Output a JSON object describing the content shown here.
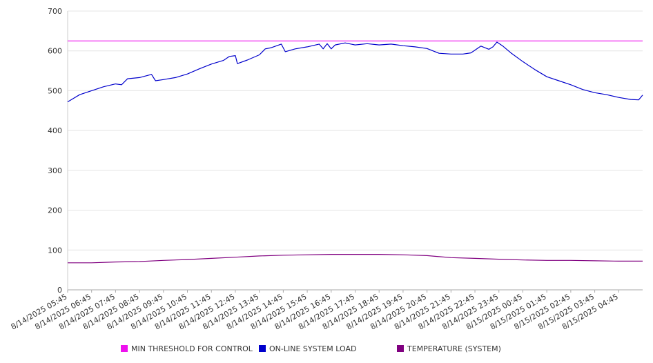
{
  "chart_data": {
    "type": "line",
    "y_ticks": [
      0,
      100,
      200,
      300,
      400,
      500,
      600,
      700
    ],
    "ylim": [
      0,
      700
    ],
    "x_tick_labels": [
      "8/14/2025 05:45",
      "8/14/2025 06:45",
      "8/14/2025 07:45",
      "8/14/2025 08:45",
      "8/14/2025 09:45",
      "8/14/2025 10:45",
      "8/14/2025 11:45",
      "8/14/2025 12:45",
      "8/14/2025 13:45",
      "8/14/2025 14:45",
      "8/14/2025 15:45",
      "8/14/2025 16:45",
      "8/14/2025 17:45",
      "8/14/2025 18:45",
      "8/14/2025 19:45",
      "8/14/2025 20:45",
      "8/14/2025 21:45",
      "8/14/2025 22:45",
      "8/14/2025 23:45",
      "8/15/2025 00:45",
      "8/15/2025 01:45",
      "8/15/2025 02:45",
      "8/15/2025 03:45",
      "8/15/2025 04:45"
    ],
    "x_range": [
      "8/14/2025 05:45",
      "8/15/2025 05:45"
    ],
    "grid": "horizontal",
    "legend_position": "bottom",
    "series": [
      {
        "name": "MIN THRESHOLD FOR CONTROL",
        "color": "#ee11ee",
        "points": [
          [
            "8/14/2025 05:45",
            625
          ],
          [
            "8/15/2025 05:45",
            625
          ]
        ]
      },
      {
        "name": "ON-LINE SYSTEM LOAD",
        "color": "#0000cc",
        "points": [
          [
            "8/14/2025 05:45",
            472
          ],
          [
            "8/14/2025 06:15",
            490
          ],
          [
            "8/14/2025 06:45",
            500
          ],
          [
            "8/14/2025 07:15",
            510
          ],
          [
            "8/14/2025 07:45",
            517
          ],
          [
            "8/14/2025 08:00",
            515
          ],
          [
            "8/14/2025 08:15",
            530
          ],
          [
            "8/14/2025 08:45",
            533
          ],
          [
            "8/14/2025 09:15",
            541
          ],
          [
            "8/14/2025 09:25",
            525
          ],
          [
            "8/14/2025 09:45",
            528
          ],
          [
            "8/14/2025 10:15",
            533
          ],
          [
            "8/14/2025 10:45",
            542
          ],
          [
            "8/14/2025 11:15",
            555
          ],
          [
            "8/14/2025 11:45",
            567
          ],
          [
            "8/14/2025 12:15",
            576
          ],
          [
            "8/14/2025 12:30",
            586
          ],
          [
            "8/14/2025 12:45",
            588
          ],
          [
            "8/14/2025 12:50",
            568
          ],
          [
            "8/14/2025 13:15",
            577
          ],
          [
            "8/14/2025 13:45",
            590
          ],
          [
            "8/14/2025 14:00",
            605
          ],
          [
            "8/14/2025 14:15",
            608
          ],
          [
            "8/14/2025 14:40",
            617
          ],
          [
            "8/14/2025 14:50",
            598
          ],
          [
            "8/14/2025 15:15",
            605
          ],
          [
            "8/14/2025 15:45",
            610
          ],
          [
            "8/14/2025 16:15",
            617
          ],
          [
            "8/14/2025 16:25",
            605
          ],
          [
            "8/14/2025 16:35",
            618
          ],
          [
            "8/14/2025 16:45",
            605
          ],
          [
            "8/14/2025 16:55",
            615
          ],
          [
            "8/14/2025 17:20",
            620
          ],
          [
            "8/14/2025 17:45",
            615
          ],
          [
            "8/14/2025 18:15",
            618
          ],
          [
            "8/14/2025 18:45",
            615
          ],
          [
            "8/14/2025 19:15",
            617
          ],
          [
            "8/14/2025 19:45",
            613
          ],
          [
            "8/14/2025 20:15",
            610
          ],
          [
            "8/14/2025 20:45",
            606
          ],
          [
            "8/14/2025 21:15",
            594
          ],
          [
            "8/14/2025 21:45",
            592
          ],
          [
            "8/14/2025 22:15",
            592
          ],
          [
            "8/14/2025 22:35",
            595
          ],
          [
            "8/14/2025 23:00",
            612
          ],
          [
            "8/14/2025 23:20",
            604
          ],
          [
            "8/14/2025 23:30",
            610
          ],
          [
            "8/14/2025 23:40",
            622
          ],
          [
            "8/14/2025 23:55",
            612
          ],
          [
            "8/15/2025 00:15",
            595
          ],
          [
            "8/15/2025 00:45",
            573
          ],
          [
            "8/15/2025 01:15",
            553
          ],
          [
            "8/15/2025 01:45",
            535
          ],
          [
            "8/15/2025 02:15",
            525
          ],
          [
            "8/15/2025 02:45",
            515
          ],
          [
            "8/15/2025 03:15",
            503
          ],
          [
            "8/15/2025 03:45",
            495
          ],
          [
            "8/15/2025 04:15",
            490
          ],
          [
            "8/15/2025 04:45",
            483
          ],
          [
            "8/15/2025 05:15",
            478
          ],
          [
            "8/15/2025 05:35",
            477
          ],
          [
            "8/15/2025 05:45",
            489
          ]
        ]
      },
      {
        "name": "TEMPERATURE (SYSTEM)",
        "color": "#800080",
        "points": [
          [
            "8/14/2025 05:45",
            68
          ],
          [
            "8/14/2025 06:45",
            68
          ],
          [
            "8/14/2025 07:45",
            70
          ],
          [
            "8/14/2025 08:45",
            71
          ],
          [
            "8/14/2025 09:45",
            74
          ],
          [
            "8/14/2025 10:45",
            76
          ],
          [
            "8/14/2025 11:45",
            79
          ],
          [
            "8/14/2025 12:45",
            82
          ],
          [
            "8/14/2025 13:45",
            85
          ],
          [
            "8/14/2025 14:45",
            87
          ],
          [
            "8/14/2025 15:45",
            88
          ],
          [
            "8/14/2025 16:45",
            89
          ],
          [
            "8/14/2025 17:45",
            89
          ],
          [
            "8/14/2025 18:45",
            89
          ],
          [
            "8/14/2025 19:45",
            88
          ],
          [
            "8/14/2025 20:45",
            86
          ],
          [
            "8/14/2025 21:45",
            81
          ],
          [
            "8/14/2025 22:45",
            79
          ],
          [
            "8/14/2025 23:45",
            77
          ],
          [
            "8/15/2025 00:45",
            75
          ],
          [
            "8/15/2025 01:45",
            74
          ],
          [
            "8/15/2025 02:45",
            74
          ],
          [
            "8/15/2025 03:45",
            73
          ],
          [
            "8/15/2025 04:45",
            72
          ],
          [
            "8/15/2025 05:45",
            72
          ]
        ]
      }
    ]
  }
}
